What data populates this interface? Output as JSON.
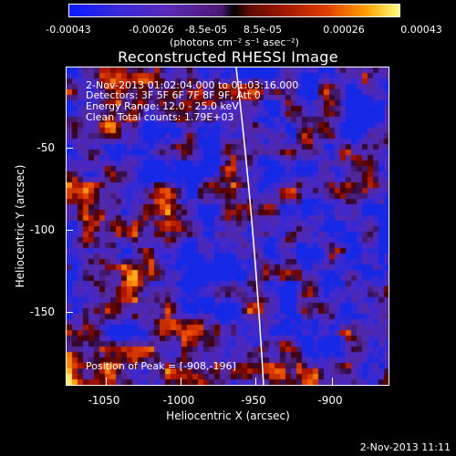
{
  "colorbar": {
    "ticks": [
      "-0.00043",
      "-0.00026",
      "-8.5e-05",
      "8.5e-05",
      "0.00026",
      "0.00043"
    ],
    "units": "(photons cm⁻² s⁻¹ asec⁻²)"
  },
  "title": "Reconstructed RHESSI Image",
  "info": {
    "time_range": "2-Nov-2013 01:02:04.000 to 01:03:16.000",
    "detectors": "Detectors: 3F 5F 6F 7F 8F 9F, Att 0",
    "energy": "Energy Range: 12.0 - 25.0 keV",
    "method": "Clean     Total counts: 1.79E+03"
  },
  "peak_label": "Position of Peak = [-908,-196]",
  "axes": {
    "xlabel": "Heliocentric X (arcsec)",
    "ylabel": "Heliocentric Y (arcsec)",
    "xticks": [
      "-1050",
      "-1000",
      "-950",
      "-900"
    ],
    "yticks": [
      "-50",
      "-100",
      "-150"
    ]
  },
  "timestamp": "2-Nov-2013 11:11",
  "colors": {
    "limb": "#ffffff",
    "background": "#000000"
  }
}
